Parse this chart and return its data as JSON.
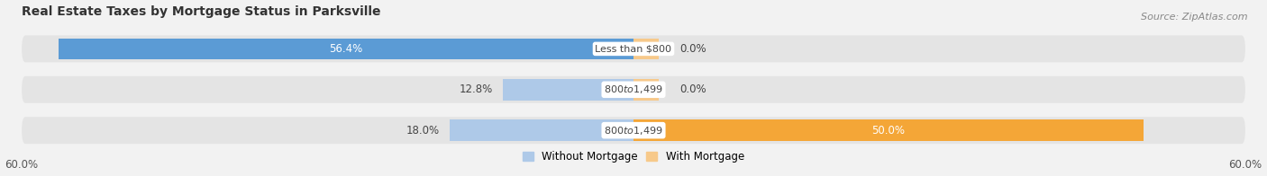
{
  "title": "Real Estate Taxes by Mortgage Status in Parksville",
  "source": "Source: ZipAtlas.com",
  "rows": [
    {
      "category": "Less than $800",
      "without_mortgage": 56.4,
      "with_mortgage": 0.0,
      "wm_label_inside": true,
      "wt_label_inside": false
    },
    {
      "category": "$800 to $1,499",
      "without_mortgage": 12.8,
      "with_mortgage": 0.0,
      "wm_label_inside": false,
      "wt_label_inside": false
    },
    {
      "category": "$800 to $1,499",
      "without_mortgage": 18.0,
      "with_mortgage": 50.0,
      "wm_label_inside": false,
      "wt_label_inside": true
    }
  ],
  "xlim": [
    -60,
    60
  ],
  "color_without": "#5b9bd5",
  "color_without_light": "#aec9e8",
  "color_with": "#f4a637",
  "color_with_light": "#f7c98a",
  "bar_height": 0.52,
  "bg_color": "#f2f2f2",
  "row_bg_color": "#e4e4e4",
  "title_fontsize": 10,
  "source_fontsize": 8,
  "legend_without": "Without Mortgage",
  "legend_with": "With Mortgage"
}
